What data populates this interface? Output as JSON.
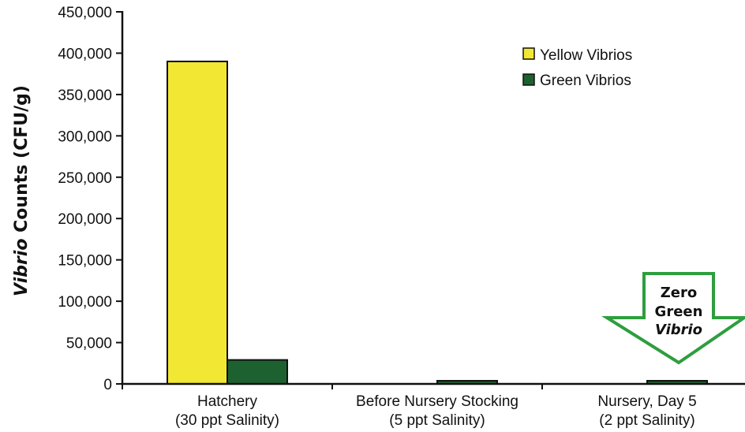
{
  "chart_data": {
    "type": "bar",
    "ylabel_italic": "Vibrio",
    "ylabel_rest": " Counts (CFU/g)",
    "ylim": [
      0,
      450000
    ],
    "yticks": [
      "0",
      "50,000",
      "100,000",
      "150,000",
      "200,000",
      "250,000",
      "300,000",
      "350,000",
      "400,000",
      "450,000"
    ],
    "categories": [
      {
        "line1": "Hatchery",
        "line2": "(30 ppt Salinity)"
      },
      {
        "line1": "Before Nursery Stocking",
        "line2": "(5 ppt Salinity)"
      },
      {
        "line1": "Nursery, Day 5",
        "line2": "(2 ppt Salinity)"
      }
    ],
    "series": [
      {
        "name": "Yellow Vibrios",
        "color": "#f2e833",
        "values": [
          390000,
          0,
          0
        ]
      },
      {
        "name": "Green Vibrios",
        "color": "#1d6131",
        "values": [
          29000,
          2000,
          2000
        ]
      }
    ],
    "legend_position": "top-right",
    "annotation": {
      "line1": "Zero",
      "line2": "Green",
      "line3": "Vibrio",
      "arrow_color": "#2e9e3e"
    }
  }
}
